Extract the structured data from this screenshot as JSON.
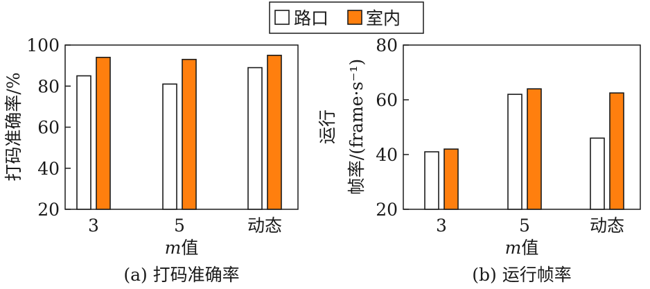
{
  "legend": {
    "items": [
      {
        "label": "路口",
        "color": "#ffffff"
      },
      {
        "label": "室内",
        "color": "#ff7f0e"
      }
    ],
    "position": "top-center"
  },
  "colors": {
    "series_open": "#ffffff",
    "series_filled": "#ff7f0e",
    "stroke": "#1a1a1a"
  },
  "chart_data": [
    {
      "type": "bar",
      "caption": "(a) 打码准确率",
      "categories": [
        "3",
        "5",
        "动态"
      ],
      "series": [
        {
          "name": "路口",
          "values": [
            85,
            81,
            89
          ]
        },
        {
          "name": "室内",
          "values": [
            94,
            93,
            95
          ]
        }
      ],
      "xlabel_italic": "m",
      "xlabel_rest": "值",
      "ylabel_lines": [
        "打码准确率/%"
      ],
      "ylim": [
        20,
        100
      ],
      "yticks": [
        20,
        40,
        60,
        80,
        100
      ],
      "grid": false
    },
    {
      "type": "bar",
      "caption": "(b) 运行帧率",
      "categories": [
        "3",
        "5",
        "动态"
      ],
      "series": [
        {
          "name": "路口",
          "values": [
            41,
            62,
            46
          ]
        },
        {
          "name": "室内",
          "values": [
            42,
            64,
            62.5
          ]
        }
      ],
      "xlabel_italic": "m",
      "xlabel_rest": "值",
      "ylabel_lines": [
        "运行",
        "帧率/(frame·s⁻¹)"
      ],
      "ylim": [
        20,
        80
      ],
      "yticks": [
        20,
        40,
        60,
        80
      ],
      "grid": false
    }
  ]
}
